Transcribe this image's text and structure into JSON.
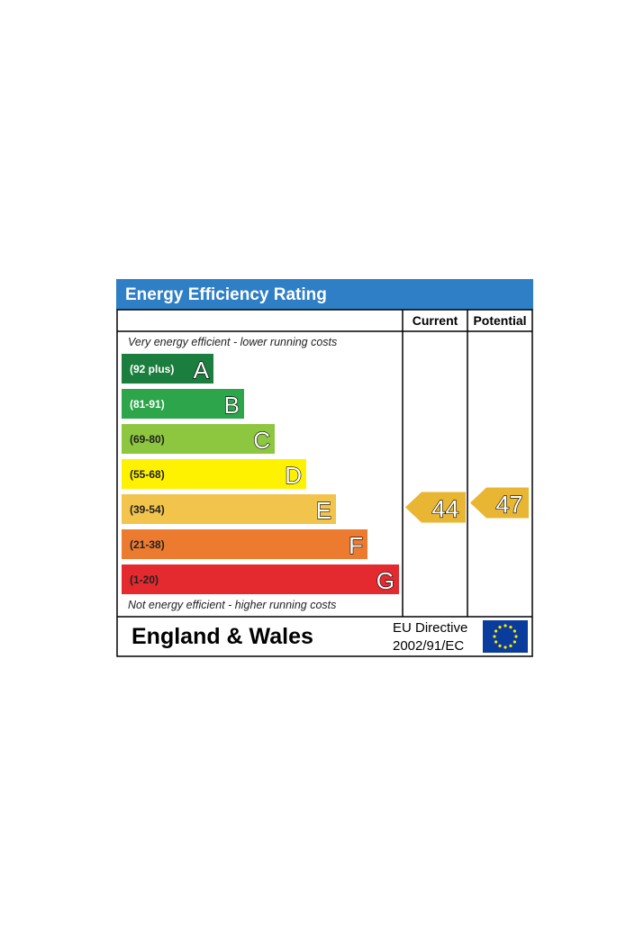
{
  "title": "Energy Efficiency Rating",
  "columns": {
    "current": "Current",
    "potential": "Potential"
  },
  "top_note": "Very energy efficient - lower running costs",
  "bottom_note": "Not energy efficient - higher running costs",
  "footer": {
    "region": "England & Wales",
    "directive_line1": "EU Directive",
    "directive_line2": "2002/91/EC",
    "flag_icon": "eu-flag-icon"
  },
  "colors": {
    "title_bar": "#2F7FC6",
    "title_text": "#ffffff",
    "arrow": "#E8B632"
  },
  "chart_data": {
    "type": "bar",
    "bands": [
      {
        "band": "A",
        "range": "(92 plus)",
        "color": "#1B7D3E",
        "range_text_color": "#ffffff"
      },
      {
        "band": "B",
        "range": "(81-91)",
        "color": "#2CA54B",
        "range_text_color": "#ffffff"
      },
      {
        "band": "C",
        "range": "(69-80)",
        "color": "#8DC63F",
        "range_text_color": "#222222"
      },
      {
        "band": "D",
        "range": "(55-68)",
        "color": "#FFF200",
        "range_text_color": "#222222"
      },
      {
        "band": "E",
        "range": "(39-54)",
        "color": "#F2C44C",
        "range_text_color": "#222222"
      },
      {
        "band": "F",
        "range": "(21-38)",
        "color": "#EC7B30",
        "range_text_color": "#222222"
      },
      {
        "band": "G",
        "range": "(1-20)",
        "color": "#E42A2F",
        "range_text_color": "#222222"
      }
    ],
    "current": {
      "value": 44,
      "band": "E"
    },
    "potential": {
      "value": 47,
      "band": "E"
    }
  }
}
